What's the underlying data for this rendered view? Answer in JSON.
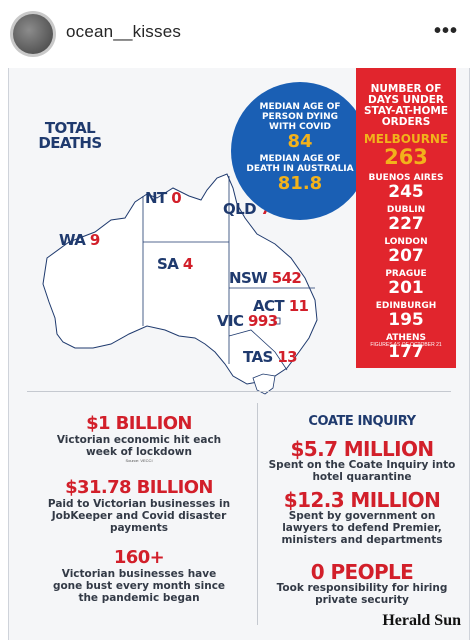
{
  "header": {
    "username": "ocean__kisses",
    "more_icon": "more-options-icon"
  },
  "infographic": {
    "total_deaths_label": "TOTAL DEATHS",
    "states": [
      {
        "name": "WA",
        "value": "9"
      },
      {
        "name": "NT",
        "value": "0"
      },
      {
        "name": "SA",
        "value": "4"
      },
      {
        "name": "QLD",
        "value": "7"
      },
      {
        "name": "NSW",
        "value": "542"
      },
      {
        "name": "ACT",
        "value": "11"
      },
      {
        "name": "VIC",
        "value": "993"
      },
      {
        "name": "TAS",
        "value": "13"
      }
    ],
    "median": {
      "label1": "MEDIAN AGE OF PERSON DYING WITH COVID",
      "value1": "84",
      "label2": "MEDIAN AGE OF DEATH IN AUSTRALIA",
      "value2": "81.8"
    },
    "lockdown": {
      "title": "NUMBER OF DAYS UNDER STAY-AT-HOME ORDERS",
      "cities": [
        {
          "city": "MELBOURNE",
          "days": "263"
        },
        {
          "city": "BUENOS AIRES",
          "days": "245"
        },
        {
          "city": "DUBLIN",
          "days": "227"
        },
        {
          "city": "LONDON",
          "days": "207"
        },
        {
          "city": "PRAGUE",
          "days": "201"
        },
        {
          "city": "EDINBURGH",
          "days": "195"
        },
        {
          "city": "ATHENS",
          "days": "177"
        }
      ],
      "footnote": "FIGURES AS OF OCTOBER 21"
    },
    "left_stats": {
      "s1_big": "$1 BILLION",
      "s1_desc": "Victorian economic hit each week of lockdown",
      "s1_source": "Source: VECCI",
      "s2_big": "$31.78 BILLION",
      "s2_desc": "Paid to Victorian businesses in JobKeeper and Covid disaster payments",
      "s3_big": "160+",
      "s3_desc": "Victorian businesses have gone bust every month since the pandemic began"
    },
    "right_stats": {
      "title": "COATE INQUIRY",
      "s1_big": "$5.7 MILLION",
      "s1_desc": "Spent on the Coate Inquiry into hotel quarantine",
      "s2_big": "$12.3 MILLION",
      "s2_desc": "Spent by government on lawyers to defend Premier, ministers and departments",
      "s3_big": "0 PEOPLE",
      "s3_desc": "Took responsibility for hiring private security"
    },
    "brand": "Herald Sun",
    "colors": {
      "red": "#e1252d",
      "blue": "#1a5fb4",
      "navy": "#1f3a6e",
      "gold": "#f2b21b"
    }
  }
}
